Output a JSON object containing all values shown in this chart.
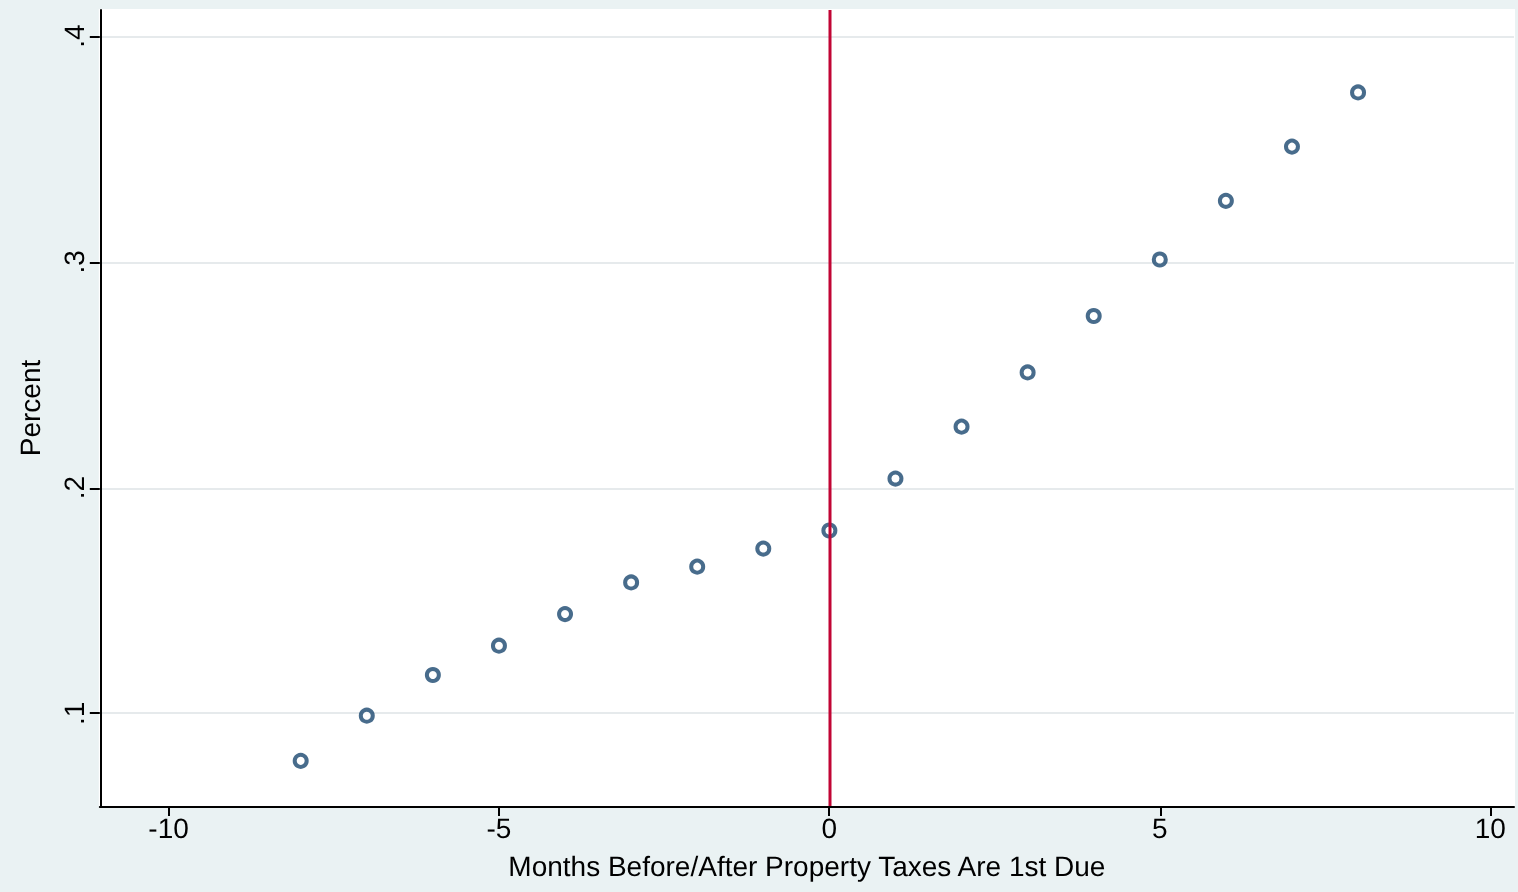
{
  "chart_data": {
    "type": "scatter",
    "xlabel": "Months Before/After Property Taxes Are 1st Due",
    "ylabel": "Percent",
    "series": [
      {
        "color": "#1a476f",
        "x": [
          -8,
          -7,
          -6,
          -5,
          -4,
          -3,
          -2,
          -1,
          0,
          1,
          2,
          3,
          4,
          5,
          6,
          7,
          8
        ],
        "values": [
          0.079,
          0.099,
          0.117,
          0.13,
          0.144,
          0.158,
          0.165,
          0.173,
          0.181,
          0.204,
          0.227,
          0.251,
          0.276,
          0.301,
          0.327,
          0.351,
          0.375
        ]
      }
    ],
    "xlim": [
      -11.04,
      10.36
    ],
    "xticks": [
      -10,
      -5,
      0,
      5,
      10
    ],
    "ylim": [
      0.059,
      0.4115
    ],
    "yticks": [
      {
        "value": 0.1,
        "label": ".1"
      },
      {
        "value": 0.2,
        "label": ".2"
      },
      {
        "value": 0.3,
        "label": ".3"
      },
      {
        "value": 0.4,
        "label": ".4"
      }
    ],
    "ref_lines": [
      {
        "axis": "x",
        "value": 0,
        "color": "#c10534"
      }
    ],
    "grid": "y",
    "marker": "circle"
  }
}
